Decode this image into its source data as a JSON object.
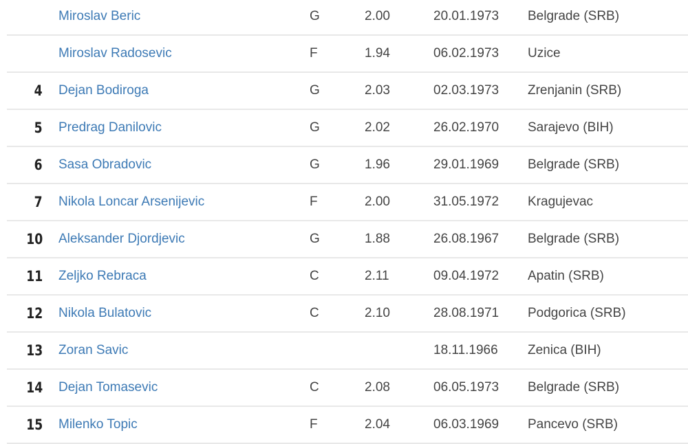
{
  "accent_color": "#3d7ab5",
  "players": [
    {
      "number": "",
      "name": "Miroslav Beric",
      "position": "G",
      "height": "2.00",
      "birth_date": "20.01.1973",
      "birth_place": "Belgrade (SRB)"
    },
    {
      "number": "",
      "name": "Miroslav Radosevic",
      "position": "F",
      "height": "1.94",
      "birth_date": "06.02.1973",
      "birth_place": "Uzice"
    },
    {
      "number": "4",
      "name": "Dejan Bodiroga",
      "position": "G",
      "height": "2.03",
      "birth_date": "02.03.1973",
      "birth_place": "Zrenjanin (SRB)"
    },
    {
      "number": "5",
      "name": "Predrag Danilovic",
      "position": "G",
      "height": "2.02",
      "birth_date": "26.02.1970",
      "birth_place": "Sarajevo (BIH)"
    },
    {
      "number": "6",
      "name": "Sasa Obradovic",
      "position": "G",
      "height": "1.96",
      "birth_date": "29.01.1969",
      "birth_place": "Belgrade (SRB)"
    },
    {
      "number": "7",
      "name": "Nikola Loncar Arsenijevic",
      "position": "F",
      "height": "2.00",
      "birth_date": "31.05.1972",
      "birth_place": "Kragujevac"
    },
    {
      "number": "10",
      "name": "Aleksander Djordjevic",
      "position": "G",
      "height": "1.88",
      "birth_date": "26.08.1967",
      "birth_place": "Belgrade (SRB)"
    },
    {
      "number": "11",
      "name": "Zeljko Rebraca",
      "position": "C",
      "height": "2.11",
      "birth_date": "09.04.1972",
      "birth_place": "Apatin (SRB)"
    },
    {
      "number": "12",
      "name": "Nikola Bulatovic",
      "position": "C",
      "height": "2.10",
      "birth_date": "28.08.1971",
      "birth_place": "Podgorica (SRB)"
    },
    {
      "number": "13",
      "name": "Zoran Savic",
      "position": "",
      "height": "",
      "birth_date": "18.11.1966",
      "birth_place": "Zenica (BIH)"
    },
    {
      "number": "14",
      "name": "Dejan Tomasevic",
      "position": "C",
      "height": "2.08",
      "birth_date": "06.05.1973",
      "birth_place": "Belgrade (SRB)"
    },
    {
      "number": "15",
      "name": "Milenko Topic",
      "position": "F",
      "height": "2.04",
      "birth_date": "06.03.1969",
      "birth_place": "Pancevo (SRB)"
    }
  ]
}
